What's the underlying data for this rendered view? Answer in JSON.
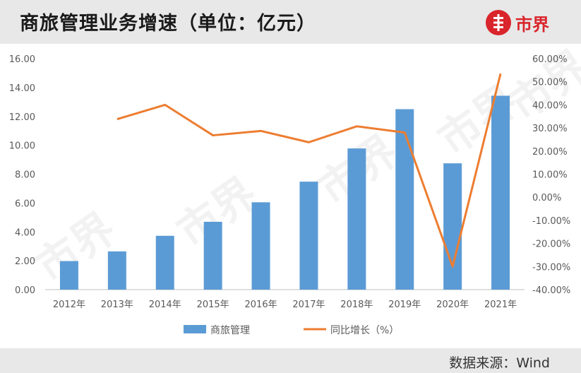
{
  "header": {
    "title": "商旅管理业务增速（单位：亿元）",
    "logo_text": "市界",
    "logo_icon": "shijie-logo-icon"
  },
  "footer": {
    "source": "数据来源：Wind"
  },
  "watermark": "市界",
  "colors": {
    "bar": "#5b9bd5",
    "line": "#ed7d31",
    "brand": "#d9252b",
    "band": "#e8e8e8"
  },
  "chart_data": {
    "type": "bar",
    "categories": [
      "2012年",
      "2013年",
      "2014年",
      "2015年",
      "2016年",
      "2017年",
      "2018年",
      "2019年",
      "2020年",
      "2021年"
    ],
    "series": [
      {
        "name": "商旅管理",
        "type": "bar",
        "axis": "left",
        "values": [
          1.98,
          2.65,
          3.73,
          4.7,
          6.05,
          7.48,
          9.78,
          12.5,
          8.75,
          13.43
        ]
      },
      {
        "name": "同比增长（%）",
        "type": "line",
        "axis": "right",
        "values": [
          null,
          33.8,
          40.0,
          26.8,
          28.7,
          23.8,
          30.7,
          28.0,
          -30.0,
          53.5
        ]
      }
    ],
    "y_left": {
      "ticks": [
        "0.00",
        "2.00",
        "4.00",
        "6.00",
        "8.00",
        "10.00",
        "12.00",
        "14.00",
        "16.00"
      ],
      "ylim": [
        0,
        16
      ]
    },
    "y_right": {
      "ticks": [
        "-40.00%",
        "-30.00%",
        "-20.00%",
        "-10.00%",
        "0.00%",
        "10.00%",
        "20.00%",
        "30.00%",
        "40.00%",
        "50.00%",
        "60.00%"
      ],
      "ylim": [
        -40,
        60
      ]
    },
    "legend": {
      "position": "bottom"
    },
    "grid": false
  }
}
